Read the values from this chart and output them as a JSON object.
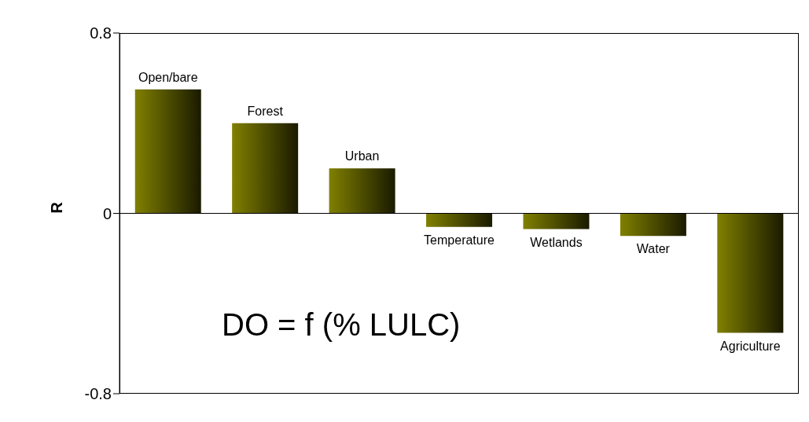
{
  "chart_data": {
    "type": "bar",
    "ylabel": "R",
    "categories": [
      "Open/bare",
      "Forest",
      "Urban",
      "Temperature",
      "Wetlands",
      "Water",
      "Agriculture"
    ],
    "values": [
      0.55,
      0.4,
      0.2,
      -0.06,
      -0.07,
      -0.1,
      -0.53
    ],
    "color": "#808000",
    "ylim": [
      -0.8,
      0.8
    ],
    "yticks": [
      -0.8,
      0,
      0.8
    ],
    "annotations": [
      "DO = f (% LULC)"
    ]
  }
}
